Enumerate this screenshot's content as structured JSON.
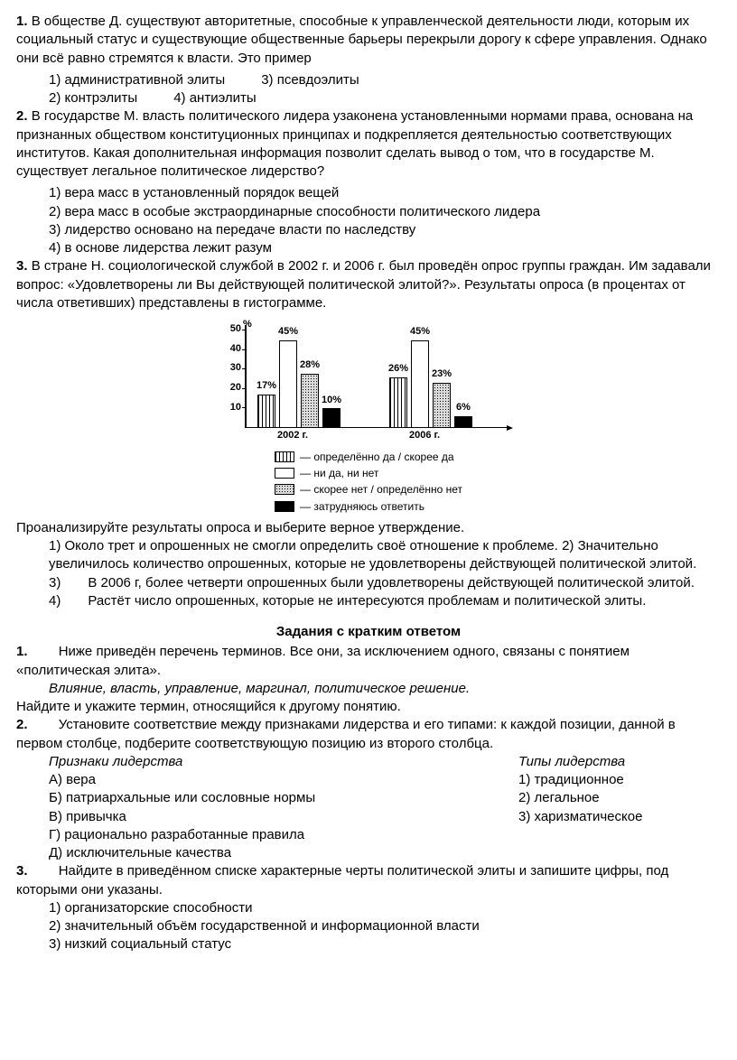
{
  "q1": {
    "num": "1.",
    "text": "В обществе Д. существуют авторитетные, способные к управленческой деятельности люди, которым их социальный статус и существующие общественные барьеры перекрыли дорогу к сфере управления. Однако они всё равно стремятся к власти. Это пример",
    "o1": "1) административной элиты",
    "o2": "2) контрэлиты",
    "o3": "3) псевдоэлиты",
    "o4": "4) антиэлиты"
  },
  "q2": {
    "num": "2.",
    "text": "В государстве М. власть политического лидера узаконена установленными нормами права, основана на признанных обществом конституционных принципах и подкрепляется деятельностью соответствующих институтов. Какая дополнительная информация позволит сделать вывод о том, что в государстве М. существует легальное политическое лидерство?",
    "o1": "1) вера масс в установленный порядок вещей",
    "o2": "2) вера масс в особые экстраординарные способности политического лидера",
    "o3": "3) лидерство основано на передаче власти по наследству",
    "o4": "4) в основе лидерства лежит разум"
  },
  "q3": {
    "num": "3.",
    "text": "В стране Н. социологической службой в 2002 г. и 2006 г. был проведён опрос группы граждан. Им задавали вопрос: «Удовлетворены ли Вы действующей политической элитой?». Результаты опроса (в процентах от числа ответивших) представлены в гистограмме.",
    "after": "Проанализируйте результаты опроса и выберите верное утверждение.",
    "o1": "1) Около трет и опрошенных не смогли определить своё отношение к проблеме. 2) Значительно увеличилось количество опрошенных, которые не удовлетворены действующей политической элитой.",
    "o3": "3)  В 2006 г, более четверти опрошенных были удовлетворены действующей политической элитой.",
    "o4": "4)  Растёт число опрошенных, которые не интересуются проблемам и политической элиты."
  },
  "chart": {
    "y_unit": "%",
    "y_ticks": [
      "50",
      "40",
      "30",
      "20",
      "10"
    ],
    "groups": [
      {
        "label": "2002 г.",
        "bars": [
          {
            "val": 17,
            "lbl": "17%",
            "fill": "stripes"
          },
          {
            "val": 45,
            "lbl": "45%",
            "fill": "white"
          },
          {
            "val": 28,
            "lbl": "28%",
            "fill": "dots"
          },
          {
            "val": 10,
            "lbl": "10%",
            "fill": "black"
          }
        ]
      },
      {
        "label": "2006 г.",
        "bars": [
          {
            "val": 26,
            "lbl": "26%",
            "fill": "stripes"
          },
          {
            "val": 45,
            "lbl": "45%",
            "fill": "white"
          },
          {
            "val": 23,
            "lbl": "23%",
            "fill": "dots"
          },
          {
            "val": 6,
            "lbl": "6%",
            "fill": "black"
          }
        ]
      }
    ],
    "legend": [
      {
        "fill": "stripes",
        "text": "— определённо да / скорее да"
      },
      {
        "fill": "white",
        "text": "— ни да, ни нет"
      },
      {
        "fill": "dots",
        "text": "— скорее нет / определённо нет"
      },
      {
        "fill": "black",
        "text": "— затрудняюсь ответить"
      }
    ]
  },
  "section2_title": "Задания с кратким ответом",
  "s1": {
    "num": "1.",
    "text": "  Ниже приведён перечень терминов. Все они, за исключением одного, связаны с понятием «политическая элита».",
    "terms": "Влияние, власть, управление, маргинал, политическое решение.",
    "after": "Найдите и укажите термин, относящийся к другому понятию."
  },
  "s2": {
    "num": "2.",
    "text": "  Установите соответствие между признаками лидерства и его типами: к каждой позиции, данной в первом столбце, подберите соответствующую позицию из второго столбца.",
    "left_h": "Признаки лидерства",
    "right_h": "Типы лидерства",
    "left": [
      "А) вера",
      "Б) патриархальные или сословные нормы",
      "В) привычка",
      "Г) рационально разработанные правила",
      "Д) исключительные качества"
    ],
    "right": [
      "1) традиционное",
      "2) легальное",
      "3) харизматическое"
    ]
  },
  "s3": {
    "num": "3.",
    "text": "  Найдите в приведённом списке характерные черты политической элиты и запишите цифры, под которыми они указаны.",
    "o1": "1) организаторские способности",
    "o2": "2) значительный объём государственной и информационной власти",
    "o3": "3) низкий социальный статус"
  }
}
